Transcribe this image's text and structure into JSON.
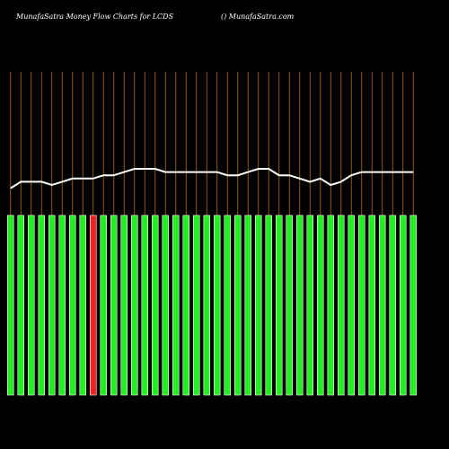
{
  "chart_data": {
    "type": "bar-line",
    "title": "MunafaSatra  Money Flow  Charts for LCDS",
    "subtitle": "() MunafaSatra.com",
    "categories": [
      null,
      null,
      null,
      null,
      null,
      null,
      null,
      null,
      null,
      null,
      null,
      null,
      null,
      null,
      null,
      null,
      null,
      null,
      null,
      null,
      null,
      null,
      null,
      null,
      null,
      null,
      null,
      null,
      null,
      null,
      null,
      null,
      null,
      null,
      null,
      null,
      null,
      null,
      null,
      null
    ],
    "ylim": [
      0,
      100
    ],
    "series": [
      {
        "kind": "bar",
        "colors": [
          "#22ee22",
          "#22ee22",
          "#22ee22",
          "#22ee22",
          "#22ee22",
          "#22ee22",
          "#22ee22",
          "#22ee22",
          "#ee2222",
          "#22ee22",
          "#22ee22",
          "#22ee22",
          "#22ee22",
          "#22ee22",
          "#22ee22",
          "#22ee22",
          "#22ee22",
          "#22ee22",
          "#22ee22",
          "#22ee22",
          "#22ee22",
          "#22ee22",
          "#22ee22",
          "#22ee22",
          "#22ee22",
          "#22ee22",
          "#22ee22",
          "#22ee22",
          "#22ee22",
          "#22ee22",
          "#22ee22",
          "#22ee22",
          "#22ee22",
          "#22ee22",
          "#22ee22",
          "#22ee22",
          "#22ee22",
          "#22ee22",
          "#22ee22",
          "#22ee22"
        ],
        "values": [
          55.6,
          55.6,
          55.6,
          55.6,
          55.6,
          55.6,
          55.6,
          55.6,
          55.6,
          55.6,
          55.6,
          55.6,
          55.6,
          55.6,
          55.6,
          55.6,
          55.6,
          55.6,
          55.6,
          55.6,
          55.6,
          55.6,
          55.6,
          55.6,
          55.6,
          55.6,
          55.6,
          55.6,
          55.6,
          55.6,
          55.6,
          55.6,
          55.6,
          55.6,
          55.6,
          55.6,
          55.6,
          55.6,
          55.6,
          55.6
        ]
      },
      {
        "kind": "line",
        "color": "#ffffff",
        "values": [
          64,
          66,
          66,
          66,
          65,
          66,
          67,
          67,
          67,
          68,
          68,
          69,
          70,
          70,
          70,
          69,
          69,
          69,
          69,
          69,
          69,
          68,
          68,
          69,
          70,
          70,
          68,
          68,
          67,
          66,
          67,
          65,
          66,
          68,
          69,
          69,
          69,
          69,
          69,
          69
        ]
      }
    ]
  }
}
